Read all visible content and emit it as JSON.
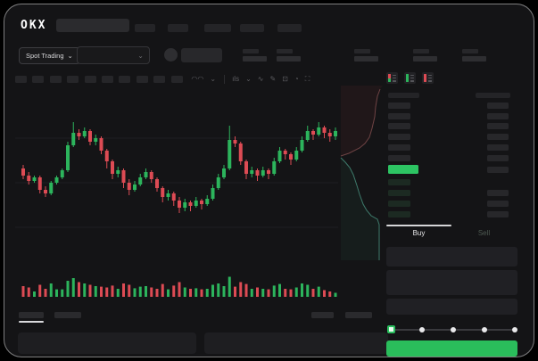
{
  "window": {
    "logo": "OKX"
  },
  "nav": {
    "placeholder_items": 5
  },
  "subheader": {
    "market_selector": {
      "label": "Spot Trading",
      "chevron": "⌄"
    },
    "pair_dropdown_chevron": "⌄",
    "stats_pairs": 5
  },
  "toolbar": {
    "placeholder_buttons": 10,
    "icons": [
      {
        "name": "ma-indicator-icon",
        "glyph": "◠◠"
      },
      {
        "name": "chevron-down-icon",
        "glyph": "⌄"
      },
      {
        "name": "divider",
        "glyph": ""
      },
      {
        "name": "interval-icon",
        "glyph": "ıls"
      },
      {
        "name": "chevron-down-icon",
        "glyph": "⌄"
      },
      {
        "name": "line-style-icon",
        "glyph": "∿"
      },
      {
        "name": "draw-icon",
        "glyph": "✎"
      },
      {
        "name": "camera-icon",
        "glyph": "⊡"
      },
      {
        "name": "history-icon",
        "glyph": "◔"
      },
      {
        "name": "fullscreen-icon",
        "glyph": "⛶"
      }
    ]
  },
  "colors": {
    "up": "#2cb45c",
    "down": "#dd4b54",
    "highlight_green": "#2dc463",
    "button_green": "#2abd5b",
    "grid": "#1e1e21",
    "depth_ask_line": "#6e4344",
    "depth_bid_line": "#3e7a6b",
    "depth_ask_fill": "rgba(150,60,60,0.10)",
    "depth_bid_fill": "rgba(45,120,90,0.10)"
  },
  "orderbook": {
    "view_icons": [
      {
        "name": "book-all-icon",
        "bar": [
          "#dd4b54",
          "#2cb45c"
        ]
      },
      {
        "name": "book-bids-icon",
        "bar": [
          "#2cb45c",
          "#2cb45c"
        ]
      },
      {
        "name": "book-asks-icon",
        "bar": [
          "#dd4b54",
          "#dd4b54"
        ]
      }
    ],
    "asks": [
      {
        "amount": true
      },
      {
        "amount": true
      },
      {
        "amount": true
      },
      {
        "amount": true
      },
      {
        "amount": true
      },
      {
        "amount": true
      }
    ],
    "last_price_highlighted": true,
    "bids": [
      {
        "amount": false
      },
      {
        "amount": true
      },
      {
        "amount": true
      },
      {
        "amount": true
      }
    ]
  },
  "trade_panel": {
    "tabs": {
      "buy": "Buy",
      "sell": "Sell",
      "active": "buy"
    },
    "form_placeholder_fields": 3,
    "slider": {
      "stops": 5,
      "active_index": 0
    }
  },
  "chart_data": {
    "type": "candlestick",
    "note": "no axis labels visible; values normalized 0-100",
    "ylim": [
      0,
      100
    ],
    "grid": "horizontal, faint",
    "candles": [
      {
        "o": 58,
        "h": 60,
        "l": 52,
        "c": 54
      },
      {
        "o": 54,
        "h": 56,
        "l": 49,
        "c": 51
      },
      {
        "o": 51,
        "h": 54,
        "l": 50,
        "c": 53
      },
      {
        "o": 53,
        "h": 54,
        "l": 44,
        "c": 46
      },
      {
        "o": 46,
        "h": 48,
        "l": 42,
        "c": 44
      },
      {
        "o": 44,
        "h": 51,
        "l": 43,
        "c": 50
      },
      {
        "o": 50,
        "h": 54,
        "l": 49,
        "c": 53
      },
      {
        "o": 53,
        "h": 58,
        "l": 52,
        "c": 57
      },
      {
        "o": 57,
        "h": 73,
        "l": 56,
        "c": 71
      },
      {
        "o": 71,
        "h": 84,
        "l": 70,
        "c": 78
      },
      {
        "o": 78,
        "h": 80,
        "l": 74,
        "c": 76
      },
      {
        "o": 76,
        "h": 81,
        "l": 75,
        "c": 79
      },
      {
        "o": 79,
        "h": 80,
        "l": 71,
        "c": 73
      },
      {
        "o": 73,
        "h": 77,
        "l": 71,
        "c": 75
      },
      {
        "o": 75,
        "h": 76,
        "l": 66,
        "c": 68
      },
      {
        "o": 68,
        "h": 69,
        "l": 58,
        "c": 62
      },
      {
        "o": 62,
        "h": 63,
        "l": 52,
        "c": 55
      },
      {
        "o": 55,
        "h": 59,
        "l": 53,
        "c": 57
      },
      {
        "o": 57,
        "h": 58,
        "l": 47,
        "c": 50
      },
      {
        "o": 50,
        "h": 52,
        "l": 43,
        "c": 46
      },
      {
        "o": 46,
        "h": 51,
        "l": 45,
        "c": 49
      },
      {
        "o": 49,
        "h": 55,
        "l": 48,
        "c": 53
      },
      {
        "o": 53,
        "h": 58,
        "l": 52,
        "c": 56
      },
      {
        "o": 56,
        "h": 57,
        "l": 50,
        "c": 52
      },
      {
        "o": 52,
        "h": 53,
        "l": 45,
        "c": 47
      },
      {
        "o": 47,
        "h": 48,
        "l": 39,
        "c": 42
      },
      {
        "o": 42,
        "h": 46,
        "l": 40,
        "c": 44
      },
      {
        "o": 44,
        "h": 45,
        "l": 37,
        "c": 40
      },
      {
        "o": 40,
        "h": 42,
        "l": 33,
        "c": 36
      },
      {
        "o": 36,
        "h": 41,
        "l": 34,
        "c": 39
      },
      {
        "o": 39,
        "h": 40,
        "l": 34,
        "c": 37
      },
      {
        "o": 37,
        "h": 42,
        "l": 36,
        "c": 40
      },
      {
        "o": 40,
        "h": 41,
        "l": 35,
        "c": 38
      },
      {
        "o": 38,
        "h": 43,
        "l": 37,
        "c": 41
      },
      {
        "o": 41,
        "h": 49,
        "l": 40,
        "c": 47
      },
      {
        "o": 47,
        "h": 55,
        "l": 46,
        "c": 53
      },
      {
        "o": 53,
        "h": 60,
        "l": 52,
        "c": 58
      },
      {
        "o": 58,
        "h": 82,
        "l": 57,
        "c": 74
      },
      {
        "o": 74,
        "h": 76,
        "l": 70,
        "c": 72
      },
      {
        "o": 72,
        "h": 73,
        "l": 60,
        "c": 62
      },
      {
        "o": 62,
        "h": 63,
        "l": 52,
        "c": 55
      },
      {
        "o": 55,
        "h": 59,
        "l": 53,
        "c": 57
      },
      {
        "o": 57,
        "h": 58,
        "l": 51,
        "c": 54
      },
      {
        "o": 54,
        "h": 59,
        "l": 53,
        "c": 57
      },
      {
        "o": 57,
        "h": 58,
        "l": 52,
        "c": 55
      },
      {
        "o": 55,
        "h": 64,
        "l": 54,
        "c": 62
      },
      {
        "o": 62,
        "h": 70,
        "l": 61,
        "c": 68
      },
      {
        "o": 68,
        "h": 69,
        "l": 63,
        "c": 66
      },
      {
        "o": 66,
        "h": 67,
        "l": 60,
        "c": 63
      },
      {
        "o": 63,
        "h": 70,
        "l": 62,
        "c": 68
      },
      {
        "o": 68,
        "h": 76,
        "l": 67,
        "c": 74
      },
      {
        "o": 74,
        "h": 82,
        "l": 73,
        "c": 79
      },
      {
        "o": 79,
        "h": 80,
        "l": 74,
        "c": 77
      },
      {
        "o": 77,
        "h": 84,
        "l": 76,
        "c": 81
      },
      {
        "o": 81,
        "h": 82,
        "l": 75,
        "c": 78
      },
      {
        "o": 78,
        "h": 80,
        "l": 73,
        "c": 76
      },
      {
        "o": 76,
        "h": 81,
        "l": 74,
        "c": 79
      }
    ],
    "volume": [
      40,
      35,
      20,
      45,
      30,
      50,
      28,
      28,
      60,
      70,
      55,
      50,
      45,
      40,
      38,
      35,
      42,
      30,
      50,
      45,
      32,
      38,
      40,
      35,
      30,
      48,
      28,
      42,
      55,
      35,
      30,
      32,
      28,
      30,
      45,
      50,
      40,
      75,
      38,
      55,
      48,
      30,
      35,
      30,
      28,
      42,
      48,
      30,
      28,
      35,
      50,
      45,
      30,
      38,
      25,
      20,
      15
    ],
    "depth": {
      "orientation": "vertical",
      "asks_line": [
        [
          47,
          4
        ],
        [
          44,
          12
        ],
        [
          42,
          24
        ],
        [
          41,
          35
        ],
        [
          38,
          48
        ],
        [
          35,
          58
        ],
        [
          30,
          65
        ],
        [
          24,
          70
        ],
        [
          12,
          76
        ],
        [
          3,
          79
        ]
      ],
      "bids_line": [
        [
          3,
          81
        ],
        [
          8,
          86
        ],
        [
          13,
          92
        ],
        [
          17,
          100
        ],
        [
          21,
          112
        ],
        [
          24,
          122
        ],
        [
          28,
          133
        ],
        [
          32,
          140
        ],
        [
          37,
          146
        ],
        [
          44,
          150
        ],
        [
          46,
          156
        ],
        [
          46,
          196
        ]
      ]
    }
  }
}
